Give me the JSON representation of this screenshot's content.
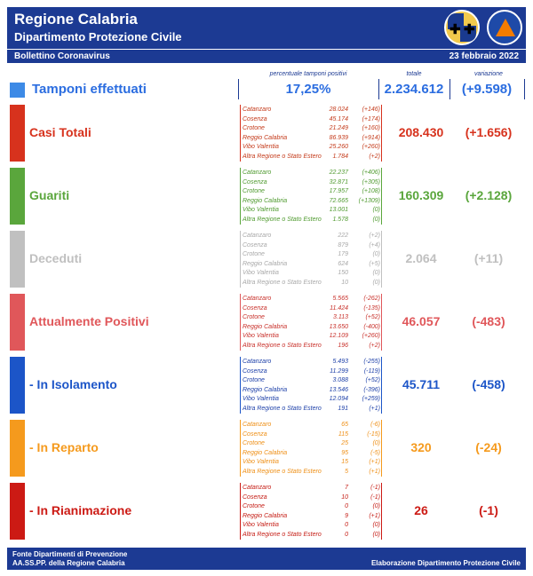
{
  "header": {
    "title": "Regione Calabria",
    "subtitle": "Dipartimento Protezione Civile"
  },
  "bar": {
    "left": "Bollettino Coronavirus",
    "right": "23 febbraio 2022"
  },
  "columns": {
    "pct": "percentuale tamponi positivi",
    "total": "totale",
    "var": "variazione"
  },
  "tamponi": {
    "label": "Tamponi effettuati",
    "pct": "17,25%",
    "total": "2.234.612",
    "var": "(+9.598)",
    "color": "#3d8ae6"
  },
  "sections": [
    {
      "key": "casi",
      "label": "Casi Totali",
      "color": "#d7321d",
      "list_color": "#c43a1a",
      "total": "208.430",
      "var": "(+1.656)",
      "rows": [
        [
          "Catanzaro",
          "28.024",
          "(+146)"
        ],
        [
          "Cosenza",
          "45.174",
          "(+174)"
        ],
        [
          "Crotone",
          "21.249",
          "(+160)"
        ],
        [
          "Reggio Calabria",
          "86.939",
          "(+914)"
        ],
        [
          "Vibo Valentia",
          "25.260",
          "(+260)"
        ],
        [
          "Altra Regione o Stato Estero",
          "1.784",
          "(+2)"
        ]
      ]
    },
    {
      "key": "guariti",
      "label": "Guariti",
      "color": "#5aa63c",
      "list_color": "#4f9a2f",
      "total": "160.309",
      "var": "(+2.128)",
      "rows": [
        [
          "Catanzaro",
          "22.237",
          "(+406)"
        ],
        [
          "Cosenza",
          "32.871",
          "(+305)"
        ],
        [
          "Crotone",
          "17.957",
          "(+108)"
        ],
        [
          "Reggio Calabria",
          "72.665",
          "(+1309)"
        ],
        [
          "Vibo Valentia",
          "13.001",
          "(0)"
        ],
        [
          "Altra Regione o Stato Estero",
          "1.578",
          "(0)"
        ]
      ]
    },
    {
      "key": "deceduti",
      "label": "Deceduti",
      "color": "#c0c0c0",
      "list_color": "#a8a8a8",
      "total": "2.064",
      "var": "(+11)",
      "rows": [
        [
          "Catanzaro",
          "222",
          "(+2)"
        ],
        [
          "Cosenza",
          "879",
          "(+4)"
        ],
        [
          "Crotone",
          "179",
          "(0)"
        ],
        [
          "Reggio Calabria",
          "624",
          "(+5)"
        ],
        [
          "Vibo Valentia",
          "150",
          "(0)"
        ],
        [
          "Altra Regione o Stato Estero",
          "10",
          "(0)"
        ]
      ]
    },
    {
      "key": "positivi",
      "label": "Attualmente Positivi",
      "color": "#e0575a",
      "list_color": "#c8302a",
      "total": "46.057",
      "var": "(-483)",
      "rows": [
        [
          "Catanzaro",
          "5.565",
          "(-262)"
        ],
        [
          "Cosenza",
          "11.424",
          "(-135)"
        ],
        [
          "Crotone",
          "3.113",
          "(+52)"
        ],
        [
          "Reggio Calabria",
          "13.650",
          "(-400)"
        ],
        [
          "Vibo Valentia",
          "12.109",
          "(+260)"
        ],
        [
          "Altra Regione o Stato Estero",
          "196",
          "(+2)"
        ]
      ]
    },
    {
      "key": "isolamento",
      "label": "- In Isolamento",
      "color": "#1c55c8",
      "list_color": "#1c3fa8",
      "total": "45.711",
      "var": "(-458)",
      "rows": [
        [
          "Catanzaro",
          "5.493",
          "(-255)"
        ],
        [
          "Cosenza",
          "11.299",
          "(-119)"
        ],
        [
          "Crotone",
          "3.088",
          "(+52)"
        ],
        [
          "Reggio Calabria",
          "13.546",
          "(-396)"
        ],
        [
          "Vibo Valentia",
          "12.094",
          "(+259)"
        ],
        [
          "Altra Regione o Stato Estero",
          "191",
          "(+1)"
        ]
      ]
    },
    {
      "key": "reparto",
      "label": "- In Reparto",
      "color": "#f59a1d",
      "list_color": "#ee8f16",
      "total": "320",
      "var": "(-24)",
      "rows": [
        [
          "Catanzaro",
          "65",
          "(-6)"
        ],
        [
          "Cosenza",
          "115",
          "(-15)"
        ],
        [
          "Crotone",
          "25",
          "(0)"
        ],
        [
          "Reggio Calabria",
          "95",
          "(-5)"
        ],
        [
          "Vibo Valentia",
          "15",
          "(+1)"
        ],
        [
          "Altra Regione o Stato Estero",
          "5",
          "(+1)"
        ]
      ]
    },
    {
      "key": "rianimazione",
      "label": "- In Rianimazione",
      "color": "#cc1a14",
      "list_color": "#c51c14",
      "total": "26",
      "var": "(-1)",
      "rows": [
        [
          "Catanzaro",
          "7",
          "(-1)"
        ],
        [
          "Cosenza",
          "10",
          "(-1)"
        ],
        [
          "Crotone",
          "0",
          "(0)"
        ],
        [
          "Reggio Calabria",
          "9",
          "(+1)"
        ],
        [
          "Vibo Valentia",
          "0",
          "(0)"
        ],
        [
          "Altra Regione o Stato Estero",
          "0",
          "(0)"
        ]
      ]
    }
  ],
  "footer": {
    "line1": "Fonte Dipartimenti di Prevenzione",
    "line2": "AA.SS.PP.  della Regione Calabria",
    "right": "Elaborazione Dipartimento Protezione Civile"
  }
}
